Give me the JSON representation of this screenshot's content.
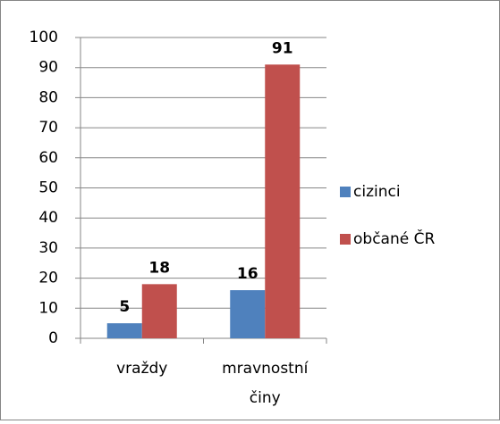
{
  "chart_data": {
    "type": "bar",
    "categories": [
      "vraždy",
      "mravnostní činy"
    ],
    "series": [
      {
        "name": "cizinci",
        "color": "#4f81bd",
        "values": [
          5,
          16
        ]
      },
      {
        "name": "občané ČR",
        "color": "#c0504d",
        "values": [
          18,
          91
        ]
      }
    ],
    "ylim": [
      0,
      100
    ],
    "yticks": [
      0,
      10,
      20,
      30,
      40,
      50,
      60,
      70,
      80,
      90,
      100
    ],
    "grid": true,
    "legend": "right"
  }
}
